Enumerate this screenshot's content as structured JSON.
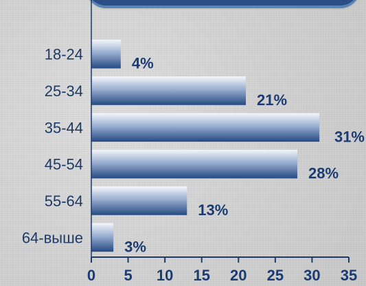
{
  "chart_data": {
    "type": "bar",
    "orientation": "horizontal",
    "categories": [
      "18-24",
      "25-34",
      "35-44",
      "45-54",
      "55-64",
      "64-выше"
    ],
    "values": [
      4,
      21,
      31,
      28,
      13,
      3
    ],
    "value_labels": [
      "4%",
      "21%",
      "31%",
      "28%",
      "13%",
      "3%"
    ],
    "xlim": [
      0,
      35
    ],
    "xticks": [
      0,
      5,
      10,
      15,
      20,
      25,
      30,
      35
    ],
    "title": "",
    "xlabel": "",
    "ylabel": "",
    "grid": false,
    "colors": {
      "bar_dark": "#244a82",
      "bar_light": "#f4f6fa",
      "label": "#1d3a66",
      "value": "#1a3c72",
      "axis": "#1d3a66"
    }
  }
}
